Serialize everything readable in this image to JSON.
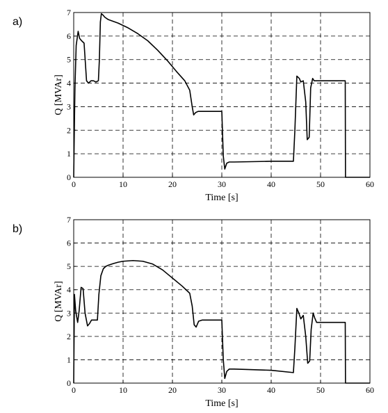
{
  "chart_data": [
    {
      "type": "line",
      "panel": "a)",
      "xlabel": "Time [s]",
      "ylabel": "Q [MVAr]",
      "xlim": [
        0,
        60
      ],
      "ylim": [
        0,
        7
      ],
      "xticks": [
        0,
        10,
        20,
        30,
        40,
        50,
        60
      ],
      "yticks": [
        0,
        1,
        2,
        3,
        4,
        5,
        6,
        7
      ],
      "grid": true,
      "series": [
        {
          "x": [
            0,
            0.1,
            0.25,
            0.5,
            0.9,
            1.2,
            1.6,
            2.1,
            2.6,
            3.0,
            3.5,
            4.0,
            4.5,
            5.0,
            5.2,
            5.4,
            5.6,
            5.9,
            6.3,
            7,
            9,
            11,
            13,
            15,
            17,
            19,
            21,
            22.5,
            23.5,
            24.0,
            24.3,
            24.7,
            25.2,
            26,
            30,
            30.3,
            30.6,
            31.0,
            31.5,
            32.5,
            40,
            44.5,
            44.8,
            45.2,
            45.7,
            46,
            46.5,
            47.0,
            47.3,
            47.7,
            48.0,
            48.4,
            48.7,
            49.2,
            49.6,
            50.0,
            51,
            55,
            55.05,
            60
          ],
          "y": [
            0,
            1.6,
            3.8,
            5.6,
            6.2,
            5.9,
            5.8,
            5.7,
            4.1,
            4.0,
            4.1,
            4.1,
            4.05,
            4.1,
            5.0,
            6.6,
            6.95,
            6.9,
            6.8,
            6.7,
            6.55,
            6.35,
            6.1,
            5.8,
            5.4,
            4.95,
            4.45,
            4.1,
            3.7,
            3.0,
            2.65,
            2.75,
            2.8,
            2.8,
            2.8,
            0.9,
            0.35,
            0.6,
            0.65,
            0.65,
            0.68,
            0.68,
            2.0,
            4.3,
            4.2,
            4.05,
            4.1,
            3.2,
            1.6,
            1.7,
            3.8,
            4.2,
            4.1,
            4.1,
            4.1,
            4.1,
            4.1,
            4.1,
            0,
            0
          ]
        }
      ]
    },
    {
      "type": "line",
      "panel": "b)",
      "xlabel": "Time [s]",
      "ylabel": "Q [MVAr]",
      "xlim": [
        0,
        60
      ],
      "ylim": [
        0,
        7
      ],
      "xticks": [
        0,
        10,
        20,
        30,
        40,
        50,
        60
      ],
      "yticks": [
        0,
        1,
        2,
        3,
        4,
        5,
        6,
        7
      ],
      "grid": true,
      "series": [
        {
          "x": [
            0,
            0.15,
            0.4,
            0.8,
            1.1,
            1.5,
            1.9,
            2.3,
            2.8,
            3.2,
            3.6,
            4.2,
            4.8,
            5.1,
            5.5,
            6.0,
            6.5,
            7,
            8,
            9,
            10,
            12,
            14,
            16,
            18,
            20,
            22,
            23.5,
            24.0,
            24.4,
            24.8,
            25.3,
            26,
            30,
            30.3,
            30.6,
            31.0,
            31.5,
            32.5,
            40,
            44.5,
            44.8,
            45.2,
            45.6,
            46.0,
            46.5,
            47.0,
            47.4,
            47.8,
            48.1,
            48.5,
            48.8,
            49.2,
            49.6,
            50.2,
            51,
            55,
            55.05,
            60
          ],
          "y": [
            0,
            3.8,
            3.1,
            2.6,
            3.1,
            4.1,
            4.05,
            3.0,
            2.45,
            2.55,
            2.7,
            2.7,
            2.7,
            3.8,
            4.6,
            4.9,
            5.0,
            5.05,
            5.12,
            5.18,
            5.22,
            5.25,
            5.22,
            5.1,
            4.85,
            4.5,
            4.15,
            3.85,
            3.3,
            2.5,
            2.4,
            2.65,
            2.7,
            2.7,
            1.0,
            0.2,
            0.5,
            0.6,
            0.6,
            0.55,
            0.45,
            1.5,
            3.2,
            3.0,
            2.75,
            2.9,
            2.0,
            0.85,
            0.95,
            2.3,
            3.0,
            2.8,
            2.6,
            2.6,
            2.6,
            2.6,
            2.6,
            0,
            0
          ]
        }
      ]
    }
  ]
}
